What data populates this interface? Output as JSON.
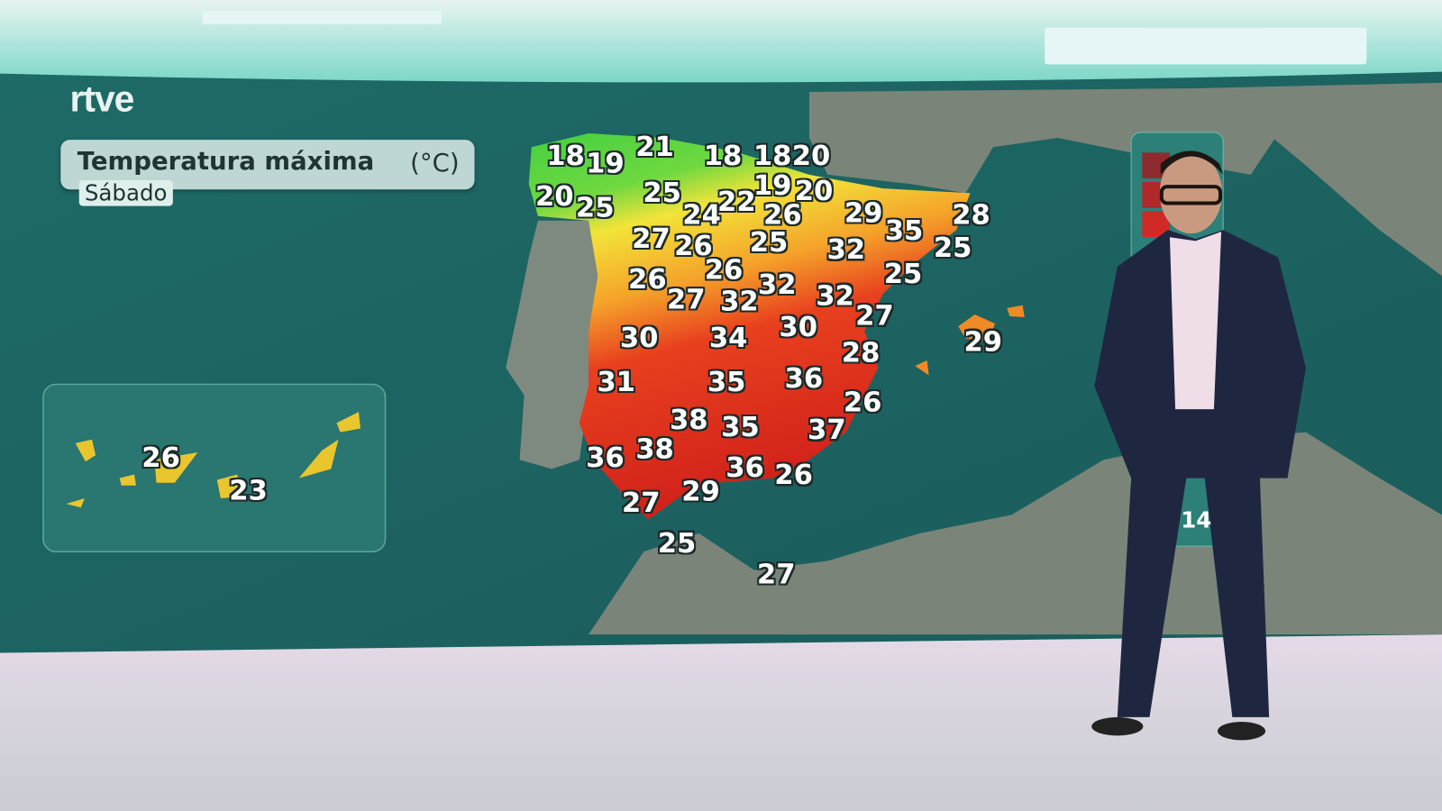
{
  "broadcast": {
    "logo": "rtve",
    "title": "Temperatura máxima",
    "unit": "(°C)",
    "day": "Sábado",
    "legend_partial_value": "14"
  },
  "temperatures": {
    "peninsula": [
      "18",
      "19",
      "21",
      "18",
      "18",
      "20",
      "20",
      "25",
      "25",
      "19",
      "20",
      "24",
      "22",
      "26",
      "29",
      "35",
      "28",
      "27",
      "26",
      "25",
      "32",
      "25",
      "26",
      "26",
      "32",
      "25",
      "27",
      "32",
      "32",
      "27",
      "30",
      "34",
      "30",
      "28",
      "31",
      "35",
      "36",
      "26",
      "38",
      "35",
      "37",
      "36",
      "38",
      "36",
      "26",
      "27",
      "29"
    ],
    "africa_coast": [
      "25",
      "27"
    ],
    "baleares": [
      "29"
    ],
    "canarias": [
      "26",
      "23"
    ]
  },
  "colors": {
    "sea": "#1f6a66",
    "land": "#7d8a7d",
    "cold": "#3fcf3f",
    "mild": "#f2e23a",
    "warm": "#f28a1e",
    "hot": "#e02a1e"
  }
}
